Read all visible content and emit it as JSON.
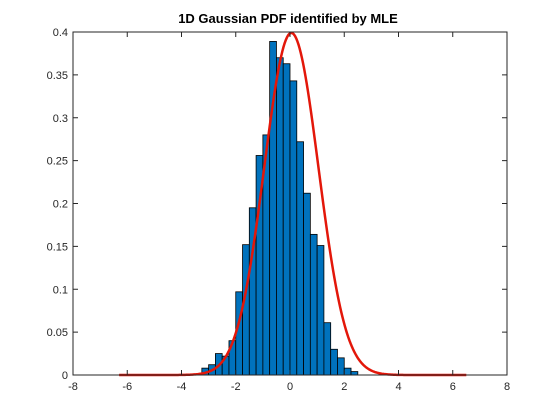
{
  "chart_data": {
    "type": "bar",
    "title": "1D Gaussian PDF identified by MLE",
    "xlabel": "",
    "ylabel": "",
    "xlim": [
      -8,
      8
    ],
    "ylim": [
      0,
      0.4
    ],
    "xticks": [
      -8,
      -6,
      -4,
      -2,
      0,
      2,
      4,
      6,
      8
    ],
    "yticks": [
      0,
      0.05,
      0.1,
      0.15,
      0.2,
      0.25,
      0.3,
      0.35,
      0.4
    ],
    "xtick_labels": [
      "-8",
      "-6",
      "-4",
      "-2",
      "0",
      "2",
      "4",
      "6",
      "8"
    ],
    "ytick_labels": [
      "0",
      "0.05",
      "0.1",
      "0.15",
      "0.2",
      "0.25",
      "0.3",
      "0.35",
      "0.4"
    ],
    "grid": false,
    "histogram": {
      "bin_width": 0.25,
      "bin_start": -3.25,
      "values": [
        0.008,
        0.012,
        0.025,
        0.022,
        0.04,
        0.097,
        0.152,
        0.195,
        0.256,
        0.28,
        0.389,
        0.37,
        0.363,
        0.343,
        0.272,
        0.212,
        0.164,
        0.151,
        0.061,
        0.03,
        0.02,
        0.008,
        0.004
      ],
      "color": "#0072BD"
    },
    "curve": {
      "type": "line",
      "mean": 0.05,
      "sigma": 1.0,
      "x_range": [
        -6.3,
        6.5
      ],
      "color": "#E3170A"
    }
  }
}
